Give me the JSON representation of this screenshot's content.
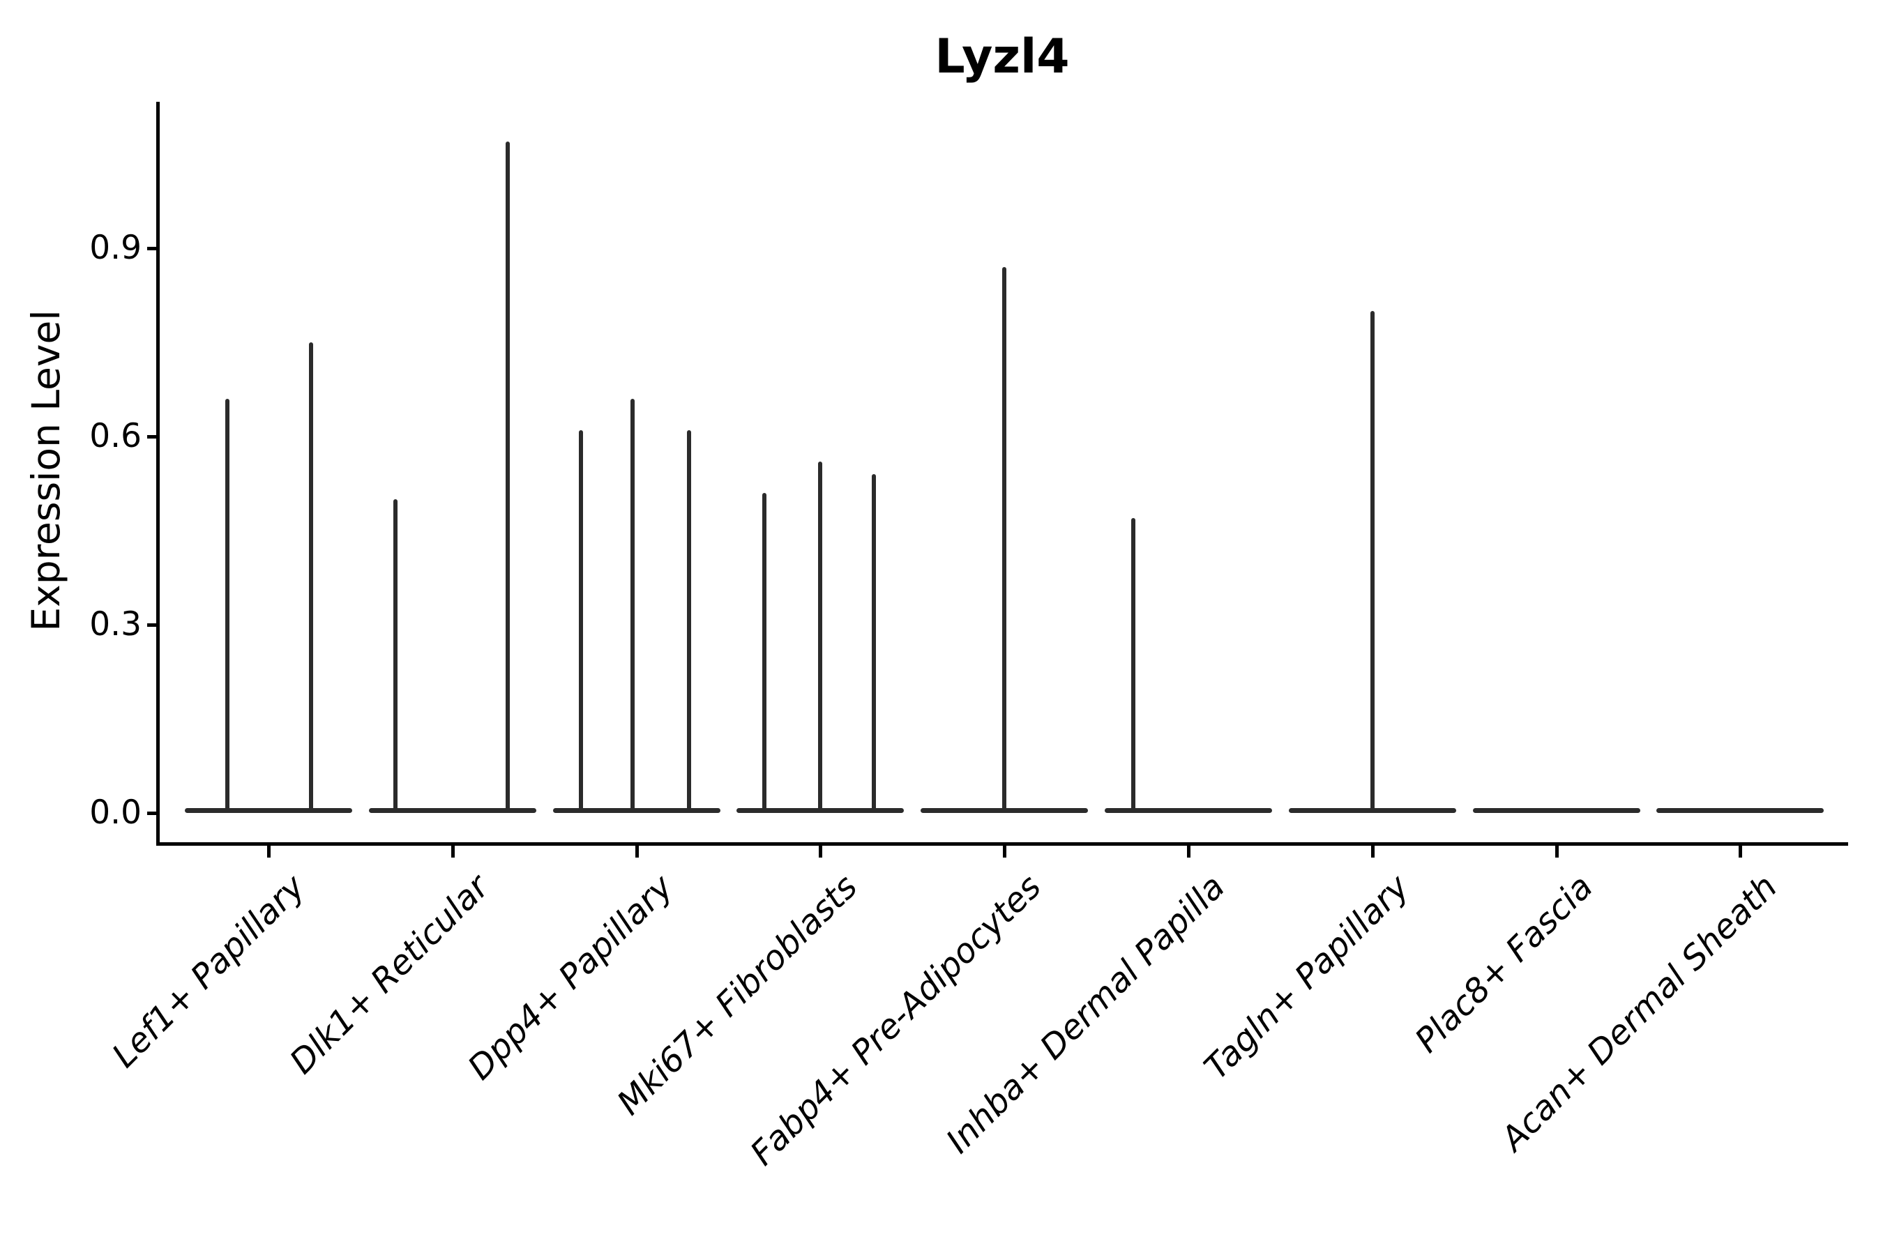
{
  "chart_data": {
    "type": "violin",
    "title": "Lyzl4",
    "ylabel": "Expression Level",
    "ylim": [
      -0.05,
      1.13
    ],
    "yticks": [
      {
        "label": "0.0",
        "value": 0.0
      },
      {
        "label": "0.3",
        "value": 0.3
      },
      {
        "label": "0.6",
        "value": 0.6
      },
      {
        "label": "0.9",
        "value": 0.9
      }
    ],
    "grid": false,
    "legend": false,
    "categories": [
      "Lef1+ Papillary",
      "Dlk1+ Reticular",
      "Dpp4+ Papillary",
      "Mki67+ Fibroblasts",
      "Fabp4+ Pre-Adipocytes",
      "Inhba+ Dermal Papilla",
      "Tagln+ Papillary",
      "Plac8+ Fascia",
      "Acan+ Dermal Sheath"
    ],
    "violins": [
      {
        "category": "Lef1+ Papillary",
        "baseline_halfwidth": 0.455,
        "spikes": [
          {
            "dx": -0.225,
            "peak": 0.66
          },
          {
            "dx": 0.23,
            "peak": 0.75
          }
        ]
      },
      {
        "category": "Dlk1+ Reticular",
        "baseline_halfwidth": 0.455,
        "spikes": [
          {
            "dx": -0.31,
            "peak": 0.5
          },
          {
            "dx": 0.3,
            "peak": 1.07
          }
        ]
      },
      {
        "category": "Dpp4+ Papillary",
        "baseline_halfwidth": 0.455,
        "spikes": [
          {
            "dx": -0.3,
            "peak": 0.61
          },
          {
            "dx": -0.02,
            "peak": 0.66
          },
          {
            "dx": 0.285,
            "peak": 0.61
          }
        ]
      },
      {
        "category": "Mki67+ Fibroblasts",
        "baseline_halfwidth": 0.455,
        "spikes": [
          {
            "dx": -0.305,
            "peak": 0.51
          },
          {
            "dx": 0.0,
            "peak": 0.56
          },
          {
            "dx": 0.29,
            "peak": 0.54
          }
        ]
      },
      {
        "category": "Fabp4+ Pre-Adipocytes",
        "baseline_halfwidth": 0.455,
        "spikes": [
          {
            "dx": 0.0,
            "peak": 0.87
          }
        ]
      },
      {
        "category": "Inhba+ Dermal Papilla",
        "baseline_halfwidth": 0.455,
        "spikes": [
          {
            "dx": -0.3,
            "peak": 0.47
          }
        ]
      },
      {
        "category": "Tagln+ Papillary",
        "baseline_halfwidth": 0.455,
        "spikes": [
          {
            "dx": 0.0,
            "peak": 0.8
          }
        ]
      },
      {
        "category": "Plac8+ Fascia",
        "baseline_halfwidth": 0.455,
        "spikes": []
      },
      {
        "category": "Acan+ Dermal Sheath",
        "baseline_halfwidth": 0.455,
        "spikes": []
      }
    ],
    "colors": {
      "violin_line": "#2b2b2b",
      "spine": "#000000",
      "text": "#000000",
      "background": "#ffffff"
    }
  }
}
